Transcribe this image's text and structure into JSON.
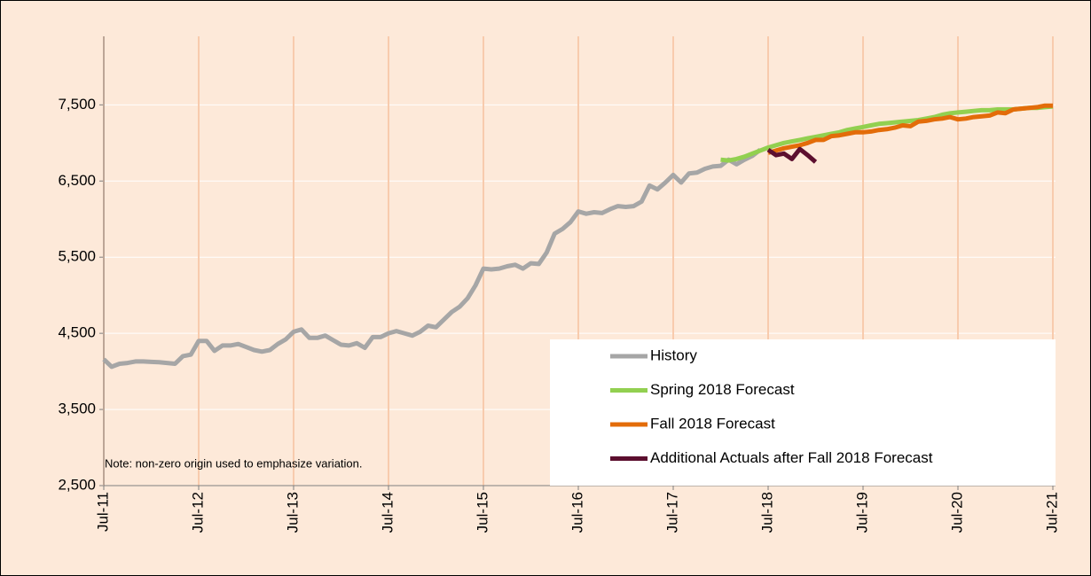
{
  "chart_data": {
    "type": "line",
    "note": "Note: non-zero origin used to emphasize variation.",
    "categories": [
      "Jul-11",
      null,
      null,
      null,
      null,
      null,
      null,
      null,
      null,
      null,
      null,
      null,
      "Jul-12",
      null,
      null,
      null,
      null,
      null,
      null,
      null,
      null,
      null,
      null,
      null,
      "Jul-13",
      null,
      null,
      null,
      null,
      null,
      null,
      null,
      null,
      null,
      null,
      null,
      "Jul-14",
      null,
      null,
      null,
      null,
      null,
      null,
      null,
      null,
      null,
      null,
      null,
      "Jul-15",
      null,
      null,
      null,
      null,
      null,
      null,
      null,
      null,
      null,
      null,
      null,
      "Jul-16",
      null,
      null,
      null,
      null,
      null,
      null,
      null,
      null,
      null,
      null,
      null,
      "Jul-17",
      null,
      null,
      null,
      null,
      null,
      null,
      null,
      null,
      null,
      null,
      null,
      "Jul-18",
      null,
      null,
      null,
      null,
      null,
      null,
      null,
      null,
      null,
      null,
      null,
      "Jul-19",
      null,
      null,
      null,
      null,
      null,
      null,
      null,
      null,
      null,
      null,
      null,
      "Jul-20",
      null,
      null,
      null,
      null,
      null,
      null,
      null,
      null,
      null,
      null,
      null,
      "Jul-21"
    ],
    "series": [
      {
        "name": "History",
        "color": "#a6a6a6",
        "values": [
          4160,
          4060,
          4100,
          4110,
          4130,
          4130,
          4125,
          4120,
          4110,
          4100,
          4200,
          4220,
          4400,
          4400,
          4270,
          4340,
          4340,
          4360,
          4320,
          4280,
          4260,
          4280,
          4360,
          4420,
          4520,
          4550,
          4440,
          4440,
          4470,
          4410,
          4350,
          4340,
          4370,
          4310,
          4450,
          4450,
          4500,
          4530,
          4500,
          4470,
          4520,
          4600,
          4580,
          4680,
          4780,
          4850,
          4960,
          5130,
          5350,
          5340,
          5350,
          5380,
          5400,
          5350,
          5420,
          5410,
          5560,
          5810,
          5870,
          5960,
          6100,
          6070,
          6090,
          6080,
          6130,
          6170,
          6160,
          6170,
          6230,
          6440,
          6390,
          6480,
          6580,
          6480,
          6600,
          6610,
          6660,
          6690,
          6700,
          6780,
          6720,
          6780,
          6830,
          6910,
          null,
          null,
          null,
          null,
          null,
          null,
          null,
          null,
          null,
          null,
          null,
          null,
          null,
          null,
          null,
          null,
          null,
          null,
          null,
          null,
          null,
          null,
          null,
          null,
          null,
          null,
          null,
          null,
          null,
          null,
          null,
          null,
          null,
          null,
          null,
          null,
          null
        ]
      },
      {
        "name": "Spring 2018 Forecast",
        "color": "#92d050",
        "values": [
          null,
          null,
          null,
          null,
          null,
          null,
          null,
          null,
          null,
          null,
          null,
          null,
          null,
          null,
          null,
          null,
          null,
          null,
          null,
          null,
          null,
          null,
          null,
          null,
          null,
          null,
          null,
          null,
          null,
          null,
          null,
          null,
          null,
          null,
          null,
          null,
          null,
          null,
          null,
          null,
          null,
          null,
          null,
          null,
          null,
          null,
          null,
          null,
          null,
          null,
          null,
          null,
          null,
          null,
          null,
          null,
          null,
          null,
          null,
          null,
          null,
          null,
          null,
          null,
          null,
          null,
          null,
          null,
          null,
          null,
          null,
          null,
          null,
          null,
          null,
          null,
          null,
          null,
          6780,
          6770,
          6790,
          6820,
          6860,
          6900,
          6940,
          6970,
          7000,
          7020,
          7040,
          7060,
          7080,
          7100,
          7120,
          7140,
          7170,
          7190,
          7210,
          7230,
          7250,
          7260,
          7270,
          7280,
          7290,
          7300,
          7320,
          7340,
          7370,
          7390,
          7400,
          7410,
          7420,
          7430,
          7430,
          7440,
          7440,
          7440,
          7450,
          7460,
          7460,
          7470,
          7480
        ]
      },
      {
        "name": "Fall 2018 Forecast",
        "color": "#e36c09",
        "values": [
          null,
          null,
          null,
          null,
          null,
          null,
          null,
          null,
          null,
          null,
          null,
          null,
          null,
          null,
          null,
          null,
          null,
          null,
          null,
          null,
          null,
          null,
          null,
          null,
          null,
          null,
          null,
          null,
          null,
          null,
          null,
          null,
          null,
          null,
          null,
          null,
          null,
          null,
          null,
          null,
          null,
          null,
          null,
          null,
          null,
          null,
          null,
          null,
          null,
          null,
          null,
          null,
          null,
          null,
          null,
          null,
          null,
          null,
          null,
          null,
          null,
          null,
          null,
          null,
          null,
          null,
          null,
          null,
          null,
          null,
          null,
          null,
          null,
          null,
          null,
          null,
          null,
          null,
          null,
          null,
          null,
          null,
          null,
          null,
          6870,
          6900,
          6930,
          6950,
          6970,
          7000,
          7040,
          7040,
          7090,
          7100,
          7120,
          7140,
          7140,
          7150,
          7170,
          7180,
          7200,
          7230,
          7220,
          7280,
          7290,
          7310,
          7320,
          7340,
          7310,
          7320,
          7340,
          7350,
          7360,
          7400,
          7390,
          7440,
          7450,
          7460,
          7470,
          7490,
          7490
        ]
      },
      {
        "name": "Additional Actuals after Fall 2018 Forecast",
        "color": "#5c0f2f",
        "values": [
          null,
          null,
          null,
          null,
          null,
          null,
          null,
          null,
          null,
          null,
          null,
          null,
          null,
          null,
          null,
          null,
          null,
          null,
          null,
          null,
          null,
          null,
          null,
          null,
          null,
          null,
          null,
          null,
          null,
          null,
          null,
          null,
          null,
          null,
          null,
          null,
          null,
          null,
          null,
          null,
          null,
          null,
          null,
          null,
          null,
          null,
          null,
          null,
          null,
          null,
          null,
          null,
          null,
          null,
          null,
          null,
          null,
          null,
          null,
          null,
          null,
          null,
          null,
          null,
          null,
          null,
          null,
          null,
          null,
          null,
          null,
          null,
          null,
          null,
          null,
          null,
          null,
          null,
          null,
          null,
          null,
          null,
          null,
          null,
          6910,
          6840,
          6860,
          6790,
          6920,
          6840,
          6750,
          null,
          null,
          null,
          null,
          null,
          null,
          null,
          null,
          null,
          null,
          null,
          null,
          null,
          null,
          null,
          null,
          null,
          null,
          null,
          null,
          null,
          null,
          null,
          null,
          null,
          null,
          null,
          null,
          null,
          null
        ]
      }
    ],
    "ylim": [
      2500,
      8400
    ],
    "yticks": [
      {
        "value": 2500,
        "label": "2,500"
      },
      {
        "value": 3500,
        "label": "3,500"
      },
      {
        "value": 4500,
        "label": "4,500"
      },
      {
        "value": 5500,
        "label": "5,500"
      },
      {
        "value": 6500,
        "label": "6,500"
      },
      {
        "value": 7500,
        "label": "7,500"
      }
    ],
    "grid": true,
    "legend": "lower right"
  }
}
